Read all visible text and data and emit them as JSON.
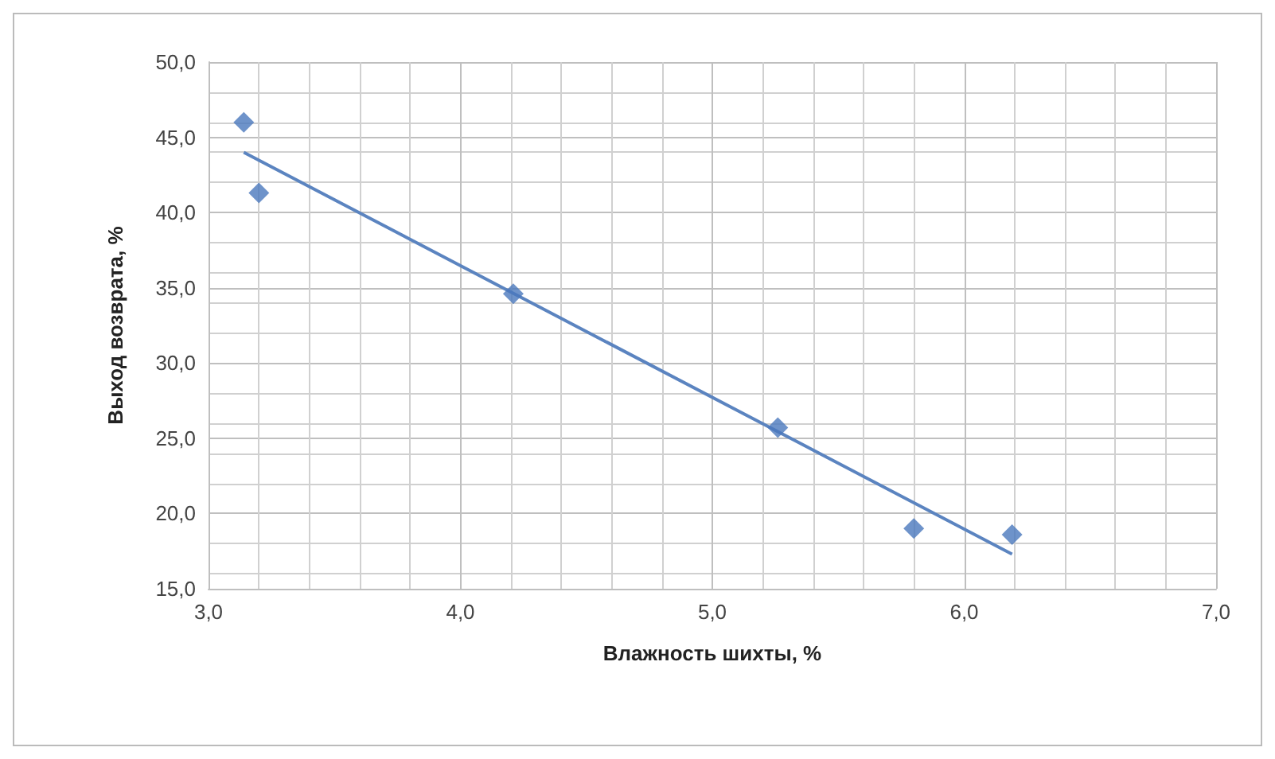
{
  "chart_data": {
    "type": "scatter",
    "xlabel": "Влажность шихты, %",
    "ylabel": "Выход возврата, %",
    "series": [
      {
        "color": "#4a78bd",
        "marker": "diamond",
        "x": [
          3.14,
          3.2,
          4.21,
          5.26,
          5.8,
          6.19
        ],
        "values": [
          46.0,
          41.3,
          34.6,
          25.7,
          19.0,
          18.6
        ]
      },
      {
        "type": "line",
        "color": "#5b84c0",
        "marker": "none",
        "line_style": "solid",
        "x": [
          3.14,
          6.19
        ],
        "values": [
          44.0,
          17.3
        ]
      }
    ],
    "xlim": [
      3,
      7
    ],
    "xticks": [
      {
        "value": 3,
        "label": "3,0"
      },
      {
        "value": 4,
        "label": "4,0"
      },
      {
        "value": 5,
        "label": "5,0"
      },
      {
        "value": 6,
        "label": "6,0"
      },
      {
        "value": 7,
        "label": "7,0"
      }
    ],
    "ylim": [
      15,
      50
    ],
    "yticks": [
      {
        "value": 15,
        "label": "15,0"
      },
      {
        "value": 20,
        "label": "20,0"
      },
      {
        "value": 25,
        "label": "25,0"
      },
      {
        "value": 30,
        "label": "30,0"
      },
      {
        "value": 35,
        "label": "35,0"
      },
      {
        "value": 40,
        "label": "40,0"
      },
      {
        "value": 45,
        "label": "45,0"
      },
      {
        "value": 50,
        "label": "50,0"
      }
    ],
    "grid": true
  }
}
